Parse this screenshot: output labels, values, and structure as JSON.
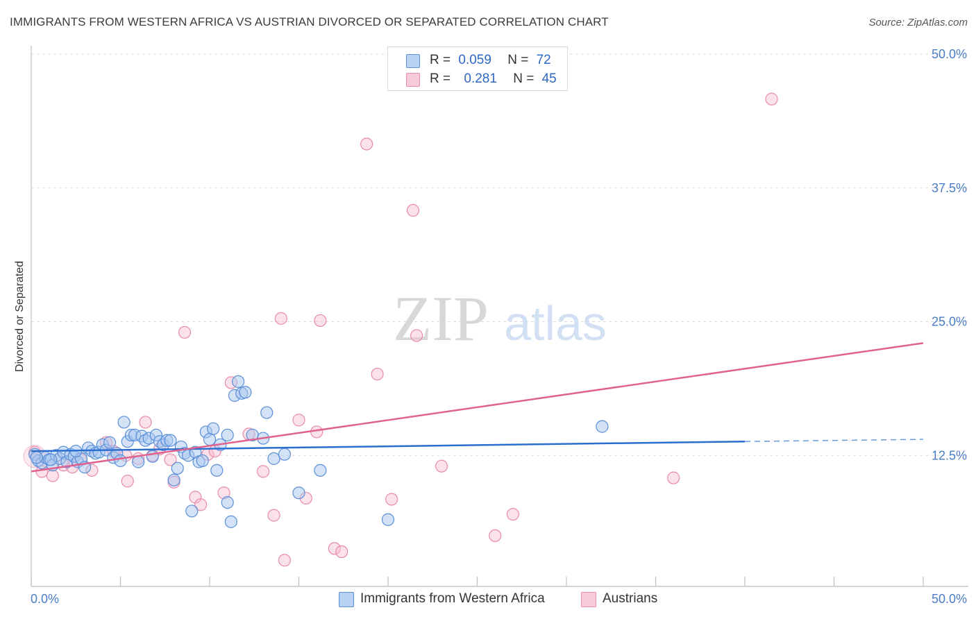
{
  "header": {
    "title": "IMMIGRANTS FROM WESTERN AFRICA VS AUSTRIAN DIVORCED OR SEPARATED CORRELATION CHART",
    "source": "Source: ZipAtlas.com"
  },
  "watermark": {
    "zip": "ZIP",
    "atlas": "atlas"
  },
  "legend": {
    "series1": {
      "r_label": "R =",
      "r_value": "0.059",
      "n_label": "N =",
      "n_value": "72"
    },
    "series2": {
      "r_label": "R =",
      "r_value": "0.281",
      "n_label": "N =",
      "n_value": "45"
    }
  },
  "bottom_legend": {
    "series1": "Immigrants from Western Africa",
    "series2": "Austrians"
  },
  "colors": {
    "blue_fill": "#a8c6f0",
    "blue_stroke": "#5a8fd8",
    "blue_line": "#2a6fcf",
    "pink_fill": "#f7bfd0",
    "pink_stroke": "#e88aa8",
    "pink_line": "#e0628e",
    "tick": "#4a7cc7",
    "grid": "#dcdcdc"
  },
  "chart_data": {
    "type": "scatter",
    "title": "IMMIGRANTS FROM WESTERN AFRICA VS AUSTRIAN DIVORCED OR SEPARATED CORRELATION CHART",
    "xlabel": "",
    "ylabel": "Divorced or Separated",
    "xlim": [
      0,
      50
    ],
    "ylim": [
      0,
      50
    ],
    "x_tick_labels": [
      "0.0%",
      "50.0%"
    ],
    "y_tick_labels": [
      "12.5%",
      "25.0%",
      "37.5%",
      "50.0%"
    ],
    "y_ticks": [
      12.5,
      25.0,
      37.5,
      50.0
    ],
    "grid": "horizontal dashed",
    "legend_position": "top-center",
    "series": [
      {
        "name": "Immigrants from Western Africa",
        "R": 0.059,
        "N": 72,
        "trend": {
          "x": [
            0,
            40
          ],
          "y": [
            12.9,
            13.8
          ],
          "dashed_extension_to_x": 50,
          "dashed_end_y": 14.0
        },
        "points": [
          [
            0.2,
            12.6
          ],
          [
            0.4,
            12.0
          ],
          [
            0.6,
            11.8
          ],
          [
            0.8,
            12.3
          ],
          [
            1.0,
            12.1
          ],
          [
            1.2,
            11.6
          ],
          [
            1.4,
            12.5
          ],
          [
            1.6,
            12.2
          ],
          [
            1.8,
            12.8
          ],
          [
            2.0,
            11.9
          ],
          [
            2.2,
            12.6
          ],
          [
            2.4,
            12.4
          ],
          [
            2.6,
            11.9
          ],
          [
            2.8,
            12.2
          ],
          [
            3.0,
            11.4
          ],
          [
            3.2,
            13.2
          ],
          [
            3.4,
            12.9
          ],
          [
            3.6,
            12.7
          ],
          [
            3.8,
            12.8
          ],
          [
            4.0,
            13.5
          ],
          [
            4.2,
            13.0
          ],
          [
            4.4,
            13.7
          ],
          [
            4.6,
            12.3
          ],
          [
            4.8,
            12.7
          ],
          [
            5.0,
            12.0
          ],
          [
            5.2,
            15.6
          ],
          [
            5.4,
            13.8
          ],
          [
            5.6,
            14.4
          ],
          [
            5.8,
            14.4
          ],
          [
            6.0,
            11.9
          ],
          [
            6.2,
            14.3
          ],
          [
            6.4,
            13.9
          ],
          [
            6.6,
            14.1
          ],
          [
            6.8,
            12.4
          ],
          [
            7.0,
            14.4
          ],
          [
            7.2,
            13.8
          ],
          [
            7.4,
            13.5
          ],
          [
            7.6,
            13.9
          ],
          [
            7.8,
            13.9
          ],
          [
            8.0,
            10.2
          ],
          [
            8.2,
            11.3
          ],
          [
            8.4,
            13.3
          ],
          [
            8.6,
            12.7
          ],
          [
            8.8,
            12.5
          ],
          [
            9.0,
            7.3
          ],
          [
            9.2,
            12.8
          ],
          [
            9.4,
            11.9
          ],
          [
            9.6,
            12.0
          ],
          [
            9.8,
            14.7
          ],
          [
            10.0,
            14.0
          ],
          [
            10.2,
            15.0
          ],
          [
            10.4,
            11.1
          ],
          [
            10.6,
            13.5
          ],
          [
            11.0,
            14.4
          ],
          [
            11.0,
            8.1
          ],
          [
            11.2,
            6.3
          ],
          [
            11.4,
            18.1
          ],
          [
            11.6,
            19.4
          ],
          [
            11.8,
            18.3
          ],
          [
            12.0,
            18.4
          ],
          [
            12.4,
            14.4
          ],
          [
            13.0,
            14.1
          ],
          [
            13.2,
            16.5
          ],
          [
            13.6,
            12.2
          ],
          [
            14.2,
            12.6
          ],
          [
            15.0,
            9.0
          ],
          [
            16.2,
            11.1
          ],
          [
            20.0,
            6.5
          ],
          [
            32.0,
            15.2
          ],
          [
            0.3,
            12.3
          ],
          [
            1.1,
            12.1
          ],
          [
            2.5,
            12.9
          ]
        ]
      },
      {
        "name": "Austrians",
        "R": 0.281,
        "N": 45,
        "trend": {
          "x": [
            0,
            50
          ],
          "y": [
            11.0,
            23.0
          ]
        },
        "points": [
          [
            0.2,
            12.8
          ],
          [
            0.6,
            11.0
          ],
          [
            1.2,
            10.6
          ],
          [
            1.8,
            11.6
          ],
          [
            2.3,
            11.4
          ],
          [
            2.8,
            12.1
          ],
          [
            3.4,
            11.1
          ],
          [
            4.2,
            13.7
          ],
          [
            4.6,
            12.9
          ],
          [
            5.3,
            12.5
          ],
          [
            5.4,
            10.1
          ],
          [
            6.0,
            12.2
          ],
          [
            6.4,
            15.6
          ],
          [
            6.8,
            12.5
          ],
          [
            7.2,
            13.1
          ],
          [
            7.8,
            12.1
          ],
          [
            8.0,
            10.0
          ],
          [
            8.6,
            24.0
          ],
          [
            9.2,
            8.6
          ],
          [
            9.5,
            7.9
          ],
          [
            9.9,
            12.6
          ],
          [
            10.3,
            12.9
          ],
          [
            10.8,
            9.0
          ],
          [
            11.2,
            19.3
          ],
          [
            12.2,
            14.5
          ],
          [
            13.0,
            11.0
          ],
          [
            13.6,
            6.9
          ],
          [
            14.0,
            25.3
          ],
          [
            14.2,
            2.7
          ],
          [
            15.0,
            15.8
          ],
          [
            15.4,
            8.5
          ],
          [
            16.0,
            14.7
          ],
          [
            16.2,
            25.1
          ],
          [
            17.0,
            3.8
          ],
          [
            17.4,
            3.5
          ],
          [
            18.8,
            41.6
          ],
          [
            19.4,
            20.1
          ],
          [
            20.2,
            8.4
          ],
          [
            21.4,
            35.4
          ],
          [
            21.6,
            23.7
          ],
          [
            23.0,
            11.5
          ],
          [
            26.0,
            5.0
          ],
          [
            27.0,
            7.0
          ],
          [
            36.0,
            10.4
          ],
          [
            41.5,
            45.8
          ]
        ]
      }
    ]
  }
}
